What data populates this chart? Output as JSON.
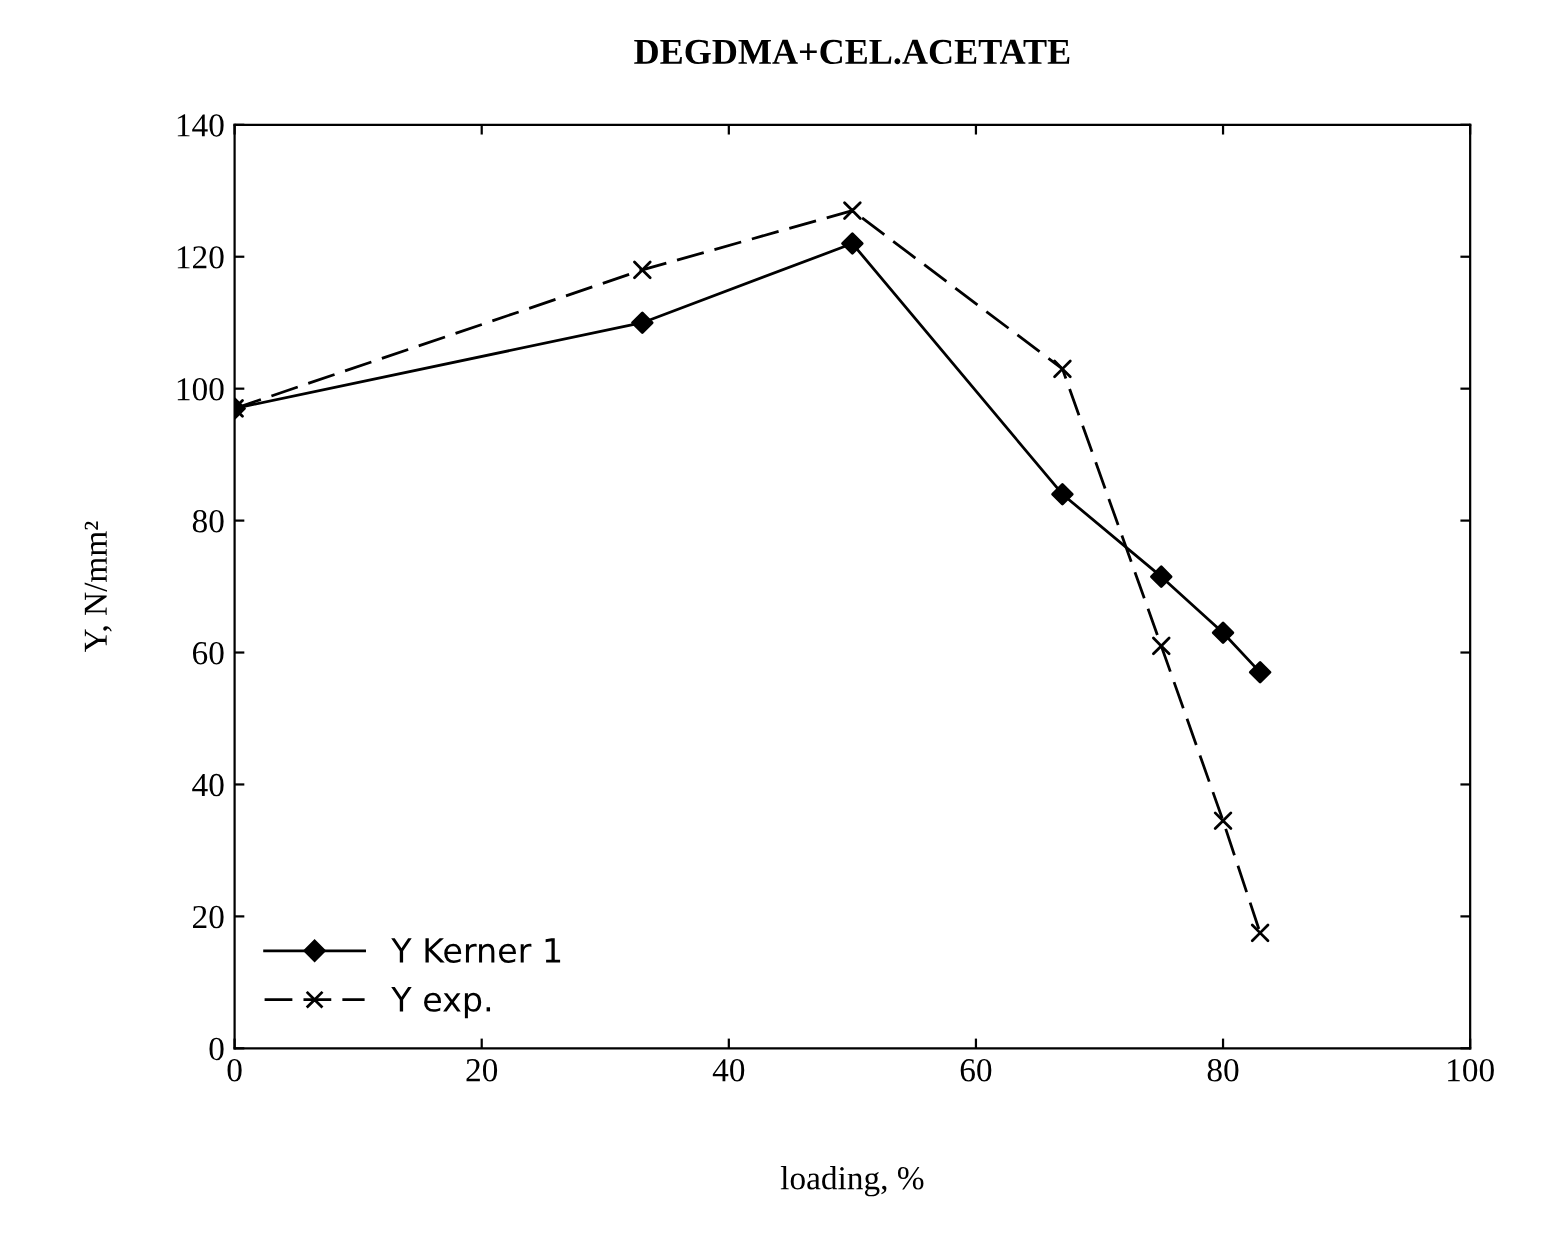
{
  "chart_data": {
    "type": "line",
    "title": "DEGDMA+CEL.ACETATE",
    "xlabel": "loading, %",
    "ylabel": "Y, N/mm²",
    "xlim": [
      0,
      100
    ],
    "xticks": [
      0,
      20,
      40,
      60,
      80,
      100
    ],
    "ylim": [
      0,
      140
    ],
    "yticks": [
      0,
      20,
      40,
      60,
      80,
      100,
      120,
      140
    ],
    "grid": false,
    "legend": "bottom left",
    "series": [
      {
        "name": "Y Kerner 1",
        "color": "#000000",
        "marker": "diamond",
        "line_style": "solid",
        "x": [
          0,
          33,
          50,
          67,
          75,
          80,
          83
        ],
        "values": [
          97,
          110,
          122,
          84,
          71.5,
          63,
          57
        ]
      },
      {
        "name": "Y exp.",
        "color": "#000000",
        "marker": "cross",
        "line_style": "dashed",
        "x": [
          0,
          33,
          50,
          67,
          75,
          80,
          83
        ],
        "values": [
          97,
          118,
          127,
          103,
          61,
          34.5,
          17.5
        ]
      }
    ]
  }
}
